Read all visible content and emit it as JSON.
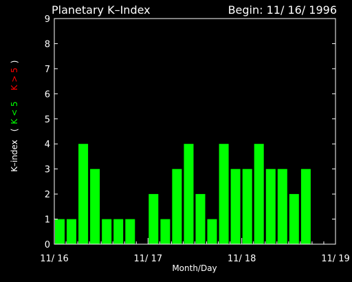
{
  "chart_data": {
    "type": "bar",
    "title": "Planetary K–Index",
    "subtitle": "Begin: 11/ 16/ 1996",
    "xlabel": "Month/Day",
    "ylabel": {
      "prefix": "K–index",
      "open": "(",
      "low": "K < 5",
      "high": "K > 5",
      "close": ")"
    },
    "ylim": [
      0,
      9
    ],
    "yticks": [
      "0",
      "1",
      "2",
      "3",
      "4",
      "5",
      "6",
      "7",
      "8",
      "9"
    ],
    "xlim": [
      0,
      24
    ],
    "xticks": [
      {
        "label": "11/ 16",
        "x": 0
      },
      {
        "label": "11/ 17",
        "x": 8
      },
      {
        "label": "11/ 18",
        "x": 16
      },
      {
        "label": "11/ 19",
        "x": 24
      }
    ],
    "interval_hours": 3,
    "values": [
      1,
      1,
      4,
      3,
      1,
      1,
      1,
      0,
      2,
      1,
      3,
      4,
      2,
      1,
      4,
      3,
      3,
      4,
      3,
      3,
      2,
      3
    ],
    "colors": {
      "low": "#00ff00",
      "high": "#ff0000",
      "axis": "#ffffff",
      "background": "#000000"
    }
  }
}
